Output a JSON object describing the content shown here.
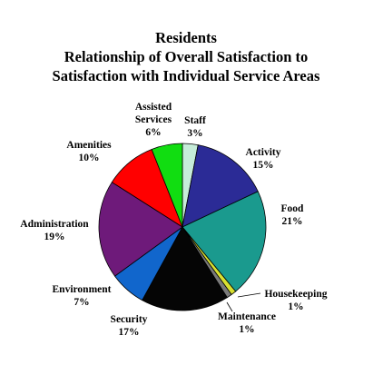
{
  "chart_data": {
    "type": "pie",
    "title": [
      "Residents",
      "Relationship of Overall Satisfaction to",
      "Satisfaction with Individual Service Areas"
    ],
    "start_angle_deg": 0,
    "direction": "clockwise",
    "slices": [
      {
        "name": "Staff",
        "value": 3,
        "label": [
          "Staff",
          "3%"
        ],
        "color": "#c6ecd9"
      },
      {
        "name": "Activity",
        "value": 15,
        "label": [
          "Activity",
          "15%"
        ],
        "color": "#2b2b96"
      },
      {
        "name": "Food",
        "value": 21,
        "label": [
          "Food",
          "21%"
        ],
        "color": "#1a9a8e"
      },
      {
        "name": "Housekeeping",
        "value": 1,
        "label": [
          "Housekeeping",
          "1%"
        ],
        "color": "#d8e030"
      },
      {
        "name": "Maintenance",
        "value": 1,
        "label": [
          "Maintenance",
          "1%"
        ],
        "color": "#7a7a7a"
      },
      {
        "name": "Security",
        "value": 17,
        "label": [
          "Security",
          "17%"
        ],
        "color": "#050505"
      },
      {
        "name": "Environment",
        "value": 7,
        "label": [
          "Environment",
          "7%"
        ],
        "color": "#1166cc"
      },
      {
        "name": "Administration",
        "value": 19,
        "label": [
          "Administration",
          "19%"
        ],
        "color": "#6e1a7a"
      },
      {
        "name": "Amenities",
        "value": 10,
        "label": [
          "Amenities",
          "10%"
        ],
        "color": "#ff0000"
      },
      {
        "name": "Assisted Services",
        "value": 6,
        "label": [
          "Assisted",
          "Services",
          "6%"
        ],
        "color": "#11dd11"
      }
    ]
  }
}
